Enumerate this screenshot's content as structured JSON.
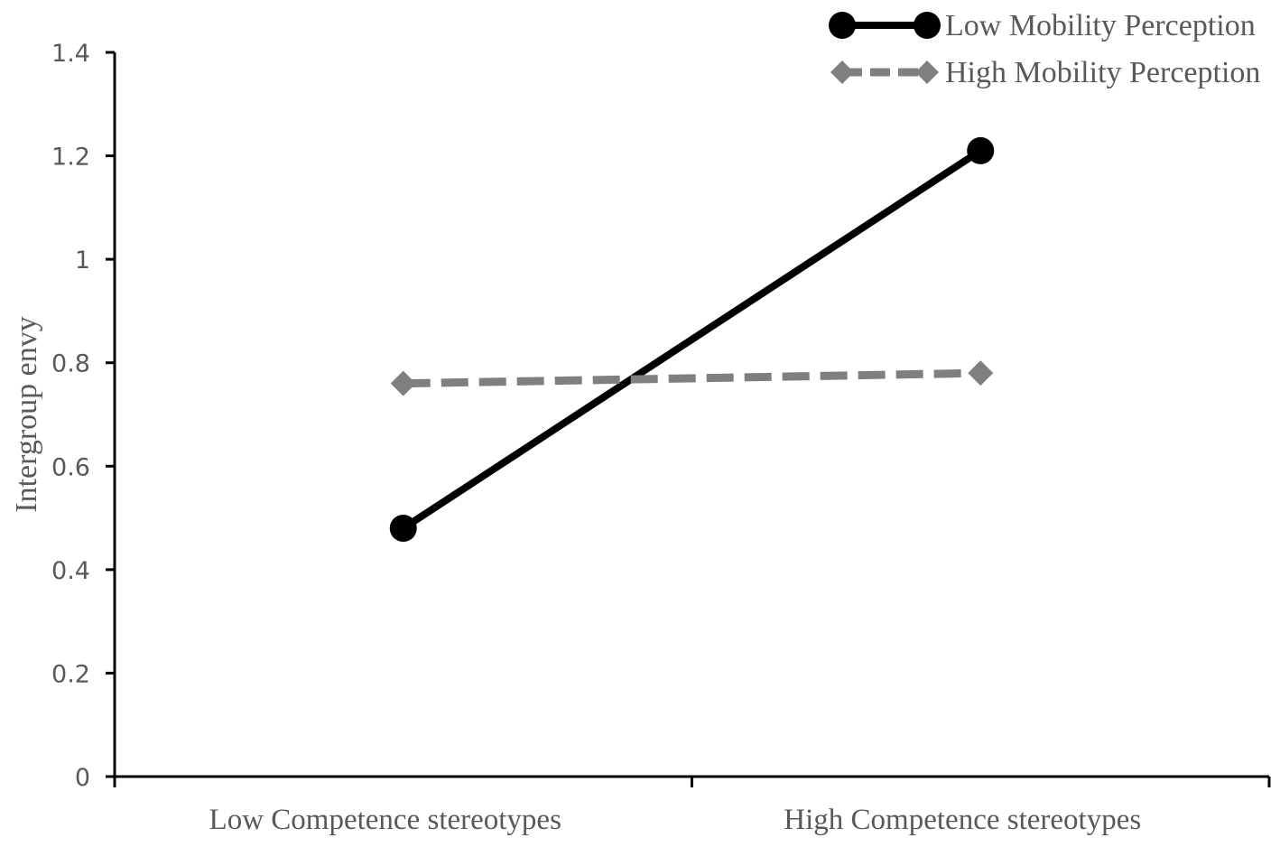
{
  "chart_data": {
    "type": "line",
    "categories": [
      "Low Competence stereotypes",
      "High Competence stereotypes"
    ],
    "series": [
      {
        "name": "Low Mobility Perception",
        "values": [
          0.48,
          1.21
        ],
        "color": "#000000",
        "style": "solid",
        "marker": "circle"
      },
      {
        "name": "High Mobility Perception",
        "values": [
          0.76,
          0.78
        ],
        "color": "#7f7f7f",
        "style": "dashed",
        "marker": "diamond"
      }
    ],
    "title": "",
    "xlabel": "",
    "ylabel": "Intergroup envy",
    "ylim": [
      0,
      1.4
    ],
    "yticks": [
      "0",
      "0.2",
      "0.4",
      "0.6",
      "0.8",
      "1",
      "1.2",
      "1.4"
    ],
    "grid": false,
    "legend_position": "top-right"
  }
}
